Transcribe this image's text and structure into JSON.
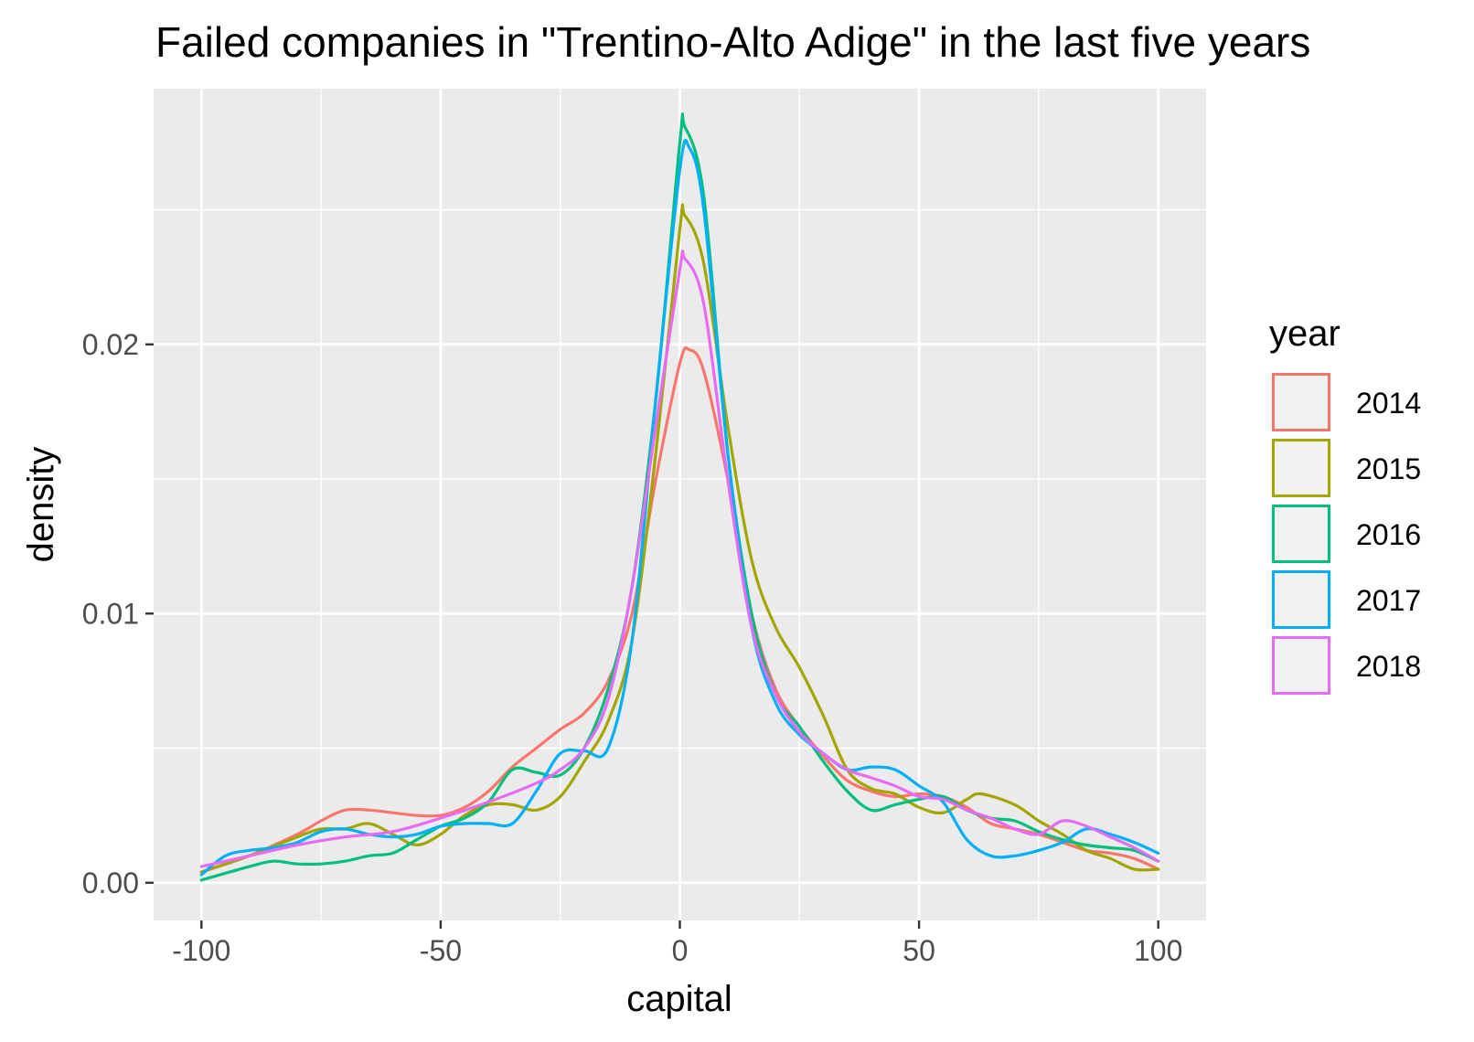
{
  "chart_data": {
    "type": "line",
    "title": "Failed companies in \"Trentino-Alto Adige\" in the last five years",
    "xlabel": "capital",
    "ylabel": "density",
    "xlim": [
      -110,
      110
    ],
    "ylim": [
      -0.0014,
      0.0295
    ],
    "x_ticks": [
      -100,
      -50,
      0,
      50,
      100
    ],
    "x_tick_labels": [
      "-100",
      "-50",
      "0",
      "50",
      "100"
    ],
    "y_ticks": [
      0,
      0.01,
      0.02
    ],
    "y_tick_labels": [
      "0.00",
      "0.01",
      "0.02"
    ],
    "grid": true,
    "legend": {
      "title": "year",
      "placement": "right"
    },
    "series": [
      {
        "name": "2014",
        "color": "#F8766D",
        "x": [
          -100,
          -90,
          -80,
          -75,
          -70,
          -65,
          -60,
          -55,
          -50,
          -45,
          -40,
          -35,
          -30,
          -25,
          -20,
          -15,
          -10,
          -5,
          0,
          2,
          5,
          10,
          15,
          20,
          25,
          30,
          35,
          40,
          45,
          50,
          55,
          60,
          65,
          70,
          75,
          80,
          85,
          90,
          95,
          100
        ],
        "y": [
          0.0004,
          0.001,
          0.0018,
          0.0023,
          0.0027,
          0.0027,
          0.0026,
          0.0025,
          0.0025,
          0.0028,
          0.0034,
          0.0043,
          0.005,
          0.0057,
          0.0063,
          0.0075,
          0.01,
          0.015,
          0.0193,
          0.0198,
          0.019,
          0.015,
          0.01,
          0.0072,
          0.0058,
          0.0047,
          0.0038,
          0.0034,
          0.0032,
          0.0033,
          0.0032,
          0.0028,
          0.0022,
          0.002,
          0.0018,
          0.0015,
          0.0012,
          0.0011,
          0.0009,
          0.0005
        ]
      },
      {
        "name": "2015",
        "color": "#A3A500",
        "x": [
          -100,
          -90,
          -80,
          -75,
          -70,
          -65,
          -60,
          -55,
          -50,
          -45,
          -40,
          -35,
          -30,
          -25,
          -20,
          -15,
          -10,
          -5,
          0,
          1,
          5,
          10,
          15,
          20,
          25,
          30,
          35,
          40,
          45,
          50,
          55,
          60,
          63,
          70,
          75,
          80,
          85,
          90,
          95,
          100
        ],
        "y": [
          0.0004,
          0.001,
          0.0017,
          0.002,
          0.002,
          0.0022,
          0.0018,
          0.0014,
          0.0018,
          0.0025,
          0.0029,
          0.0029,
          0.0027,
          0.0032,
          0.0045,
          0.006,
          0.009,
          0.016,
          0.0243,
          0.0248,
          0.023,
          0.017,
          0.012,
          0.0095,
          0.008,
          0.0062,
          0.0042,
          0.0035,
          0.0033,
          0.0028,
          0.0026,
          0.0031,
          0.0033,
          0.0029,
          0.0023,
          0.0018,
          0.0012,
          0.0009,
          0.0005,
          0.0005
        ]
      },
      {
        "name": "2016",
        "color": "#00BF7D",
        "x": [
          -100,
          -90,
          -85,
          -80,
          -75,
          -70,
          -65,
          -60,
          -55,
          -50,
          -45,
          -40,
          -35,
          -30,
          -25,
          -20,
          -15,
          -10,
          -5,
          0,
          1,
          5,
          10,
          15,
          20,
          25,
          30,
          35,
          40,
          45,
          50,
          55,
          60,
          65,
          70,
          75,
          80,
          85,
          90,
          95,
          100
        ],
        "y": [
          0.0001,
          0.0006,
          0.0008,
          0.0007,
          0.0007,
          0.0008,
          0.001,
          0.0011,
          0.0016,
          0.0021,
          0.0024,
          0.003,
          0.0042,
          0.0041,
          0.004,
          0.005,
          0.0072,
          0.011,
          0.018,
          0.0275,
          0.0281,
          0.0255,
          0.016,
          0.01,
          0.007,
          0.0058,
          0.0045,
          0.0034,
          0.0027,
          0.0029,
          0.0031,
          0.0032,
          0.0027,
          0.0024,
          0.0023,
          0.0019,
          0.0016,
          0.0014,
          0.0013,
          0.0012,
          0.0008
        ]
      },
      {
        "name": "2017",
        "color": "#00B0F6",
        "x": [
          -100,
          -95,
          -90,
          -85,
          -80,
          -75,
          -70,
          -65,
          -60,
          -55,
          -50,
          -45,
          -40,
          -35,
          -30,
          -25,
          -20,
          -15,
          -10,
          -5,
          0,
          2,
          5,
          10,
          15,
          20,
          25,
          30,
          35,
          40,
          45,
          50,
          55,
          60,
          65,
          70,
          75,
          80,
          85,
          90,
          95,
          100
        ],
        "y": [
          0.0003,
          0.001,
          0.0012,
          0.0013,
          0.0015,
          0.0019,
          0.002,
          0.0018,
          0.0017,
          0.0018,
          0.0021,
          0.0022,
          0.0022,
          0.0022,
          0.0034,
          0.0048,
          0.0049,
          0.005,
          0.009,
          0.018,
          0.0265,
          0.0273,
          0.025,
          0.016,
          0.0095,
          0.0067,
          0.0055,
          0.0048,
          0.0042,
          0.0043,
          0.0042,
          0.0036,
          0.003,
          0.0016,
          0.001,
          0.001,
          0.0012,
          0.0015,
          0.002,
          0.0018,
          0.0015,
          0.0011
        ]
      },
      {
        "name": "2018",
        "color": "#E76BF3",
        "x": [
          -100,
          -90,
          -80,
          -70,
          -60,
          -50,
          -40,
          -30,
          -25,
          -20,
          -15,
          -10,
          -5,
          0,
          1,
          5,
          10,
          15,
          20,
          25,
          30,
          35,
          40,
          45,
          50,
          55,
          60,
          65,
          70,
          75,
          80,
          85,
          90,
          95,
          100
        ],
        "y": [
          0.0006,
          0.001,
          0.0014,
          0.0017,
          0.0019,
          0.0024,
          0.003,
          0.0037,
          0.0042,
          0.005,
          0.0068,
          0.011,
          0.017,
          0.0228,
          0.0232,
          0.0215,
          0.015,
          0.0095,
          0.007,
          0.0056,
          0.0048,
          0.0042,
          0.0039,
          0.0036,
          0.0032,
          0.0031,
          0.0027,
          0.0024,
          0.002,
          0.0018,
          0.0023,
          0.0021,
          0.0017,
          0.0013,
          0.0008
        ]
      }
    ]
  }
}
